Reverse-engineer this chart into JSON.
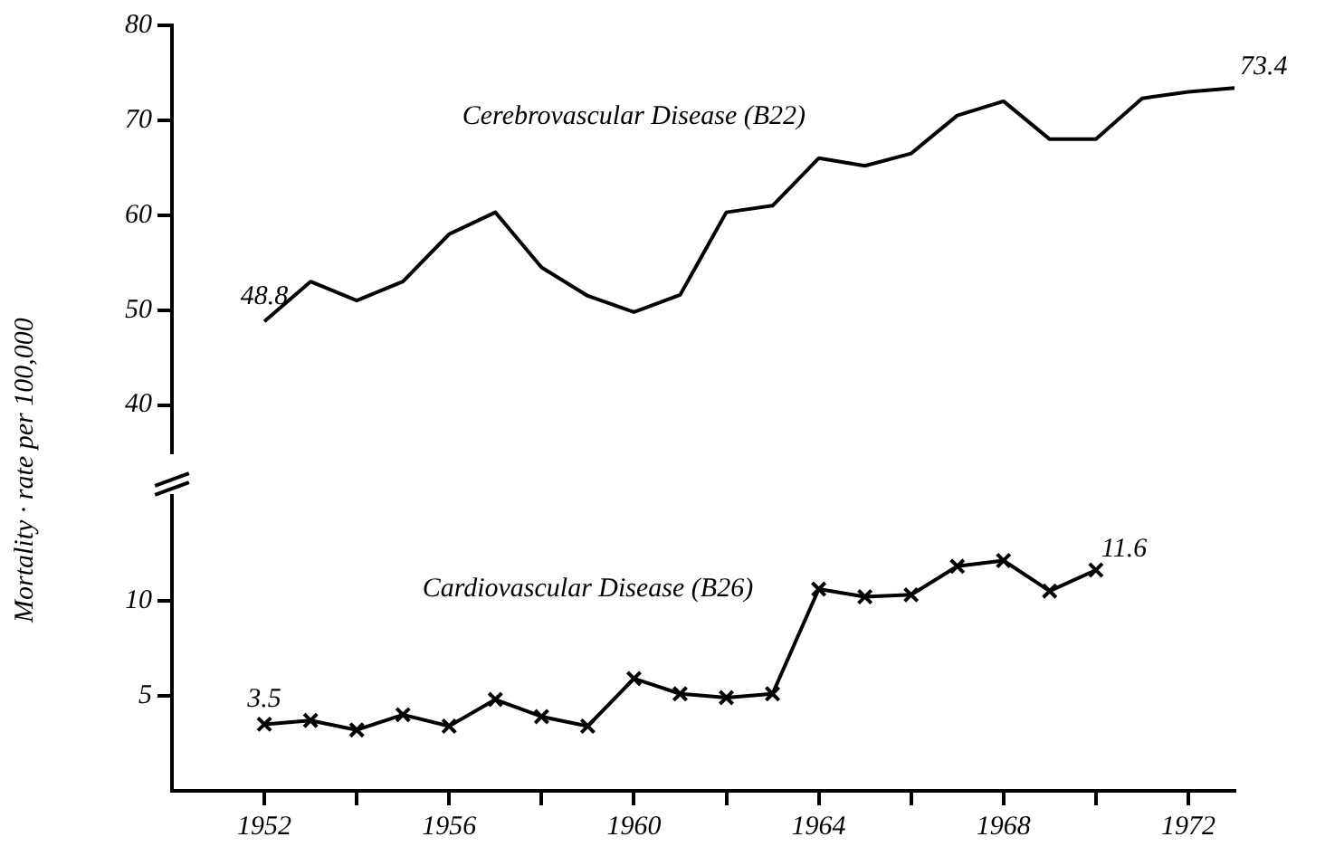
{
  "chart_data": [
    {
      "type": "line",
      "ylabel": "Mortality · rate per 100,000",
      "x": [
        1952,
        1953,
        1954,
        1955,
        1956,
        1957,
        1958,
        1959,
        1960,
        1961,
        1962,
        1963,
        1964,
        1965,
        1966,
        1967,
        1968,
        1969,
        1970,
        1971,
        1972,
        1973
      ],
      "series": [
        {
          "name": "Cerebrovascular Disease (B22)",
          "color": "#000000",
          "values": [
            48.8,
            53,
            51,
            53,
            58,
            60.3,
            54.5,
            51.5,
            49.8,
            51.6,
            60.3,
            61,
            66,
            65.2,
            66.5,
            70.5,
            72,
            68,
            68,
            72.3,
            73,
            73.4
          ],
          "value_labels": [
            "48.8",
            null,
            null,
            null,
            null,
            null,
            null,
            null,
            null,
            null,
            null,
            null,
            null,
            null,
            null,
            null,
            null,
            null,
            null,
            null,
            null,
            "73.4"
          ]
        }
      ],
      "ylim": [
        35,
        80
      ],
      "yticks": [
        40,
        50,
        60,
        70,
        80
      ],
      "tick_labels": "y",
      "grid": false,
      "legend": false,
      "marker": "none",
      "line_style": "solid"
    },
    {
      "type": "line",
      "x": [
        1952,
        1953,
        1954,
        1955,
        1956,
        1957,
        1958,
        1959,
        1960,
        1961,
        1962,
        1963,
        1964,
        1965,
        1966,
        1967,
        1968,
        1969,
        1970
      ],
      "series": [
        {
          "name": "Cardiovascular Disease (B26)",
          "color": "#000000",
          "values": [
            3.5,
            3.7,
            3.2,
            4.0,
            3.4,
            4.8,
            3.9,
            3.4,
            5.9,
            5.1,
            4.9,
            5.1,
            10.6,
            10.2,
            10.3,
            11.8,
            12.1,
            10.5,
            11.6
          ],
          "value_labels": [
            "3.5",
            null,
            null,
            null,
            null,
            null,
            null,
            null,
            null,
            null,
            null,
            null,
            null,
            null,
            null,
            null,
            null,
            null,
            "11.6"
          ]
        }
      ],
      "xlim": [
        1950,
        1973
      ],
      "xticks": [
        1952,
        {
          "value": 1954,
          "label": null
        },
        1956,
        {
          "value": 1958,
          "label": null
        },
        1960,
        {
          "value": 1962,
          "label": null
        },
        1964,
        {
          "value": 1966,
          "label": null
        },
        1968,
        {
          "value": 1970,
          "label": null
        },
        1972
      ],
      "ylim": [
        0,
        15.5
      ],
      "yticks": [
        5,
        10
      ],
      "grid": false,
      "legend": false,
      "marker": "cross",
      "line_style": "solid"
    }
  ]
}
